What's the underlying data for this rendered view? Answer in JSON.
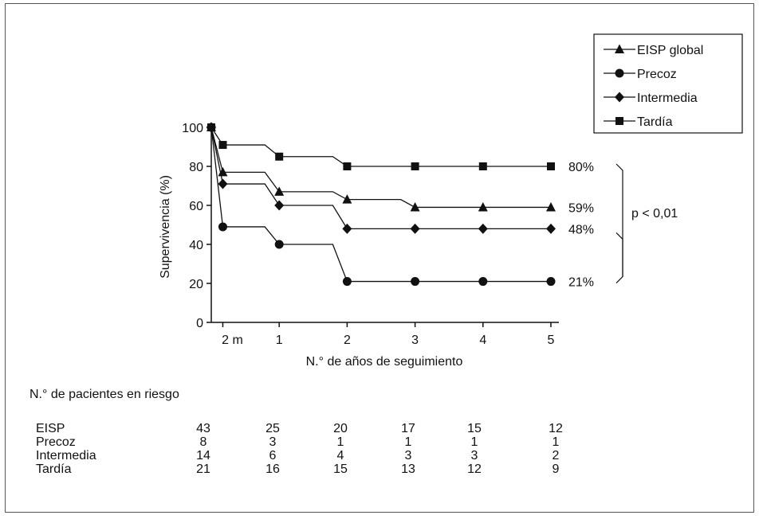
{
  "chart_data": {
    "type": "line",
    "xlabel": "N.° de años de seguimiento",
    "ylabel": "Supervivencia (%)",
    "ylim": [
      0,
      100
    ],
    "xlim": [
      0,
      5
    ],
    "x_ticks": [
      {
        "x": 0.17,
        "label": "2 m"
      },
      {
        "x": 1,
        "label": "1"
      },
      {
        "x": 2,
        "label": "2"
      },
      {
        "x": 3,
        "label": "3"
      },
      {
        "x": 4,
        "label": "4"
      },
      {
        "x": 5,
        "label": "5"
      }
    ],
    "y_ticks": [
      0,
      20,
      40,
      60,
      80,
      100
    ],
    "series": [
      {
        "name": "EISP global",
        "marker": "triangle",
        "end_label": "59%",
        "points": [
          [
            0,
            100
          ],
          [
            0.17,
            77
          ],
          [
            1,
            67
          ],
          [
            2,
            63
          ],
          [
            3,
            59
          ],
          [
            4,
            59
          ],
          [
            5,
            59
          ]
        ]
      },
      {
        "name": "Precoz",
        "marker": "circle",
        "end_label": "21%",
        "points": [
          [
            0,
            100
          ],
          [
            0.17,
            49
          ],
          [
            1,
            40
          ],
          [
            2,
            21
          ],
          [
            3,
            21
          ],
          [
            4,
            21
          ],
          [
            5,
            21
          ]
        ]
      },
      {
        "name": "Intermedia",
        "marker": "diamond",
        "end_label": "48%",
        "points": [
          [
            0,
            100
          ],
          [
            0.17,
            71
          ],
          [
            1,
            60
          ],
          [
            2,
            48
          ],
          [
            3,
            48
          ],
          [
            4,
            48
          ],
          [
            5,
            48
          ]
        ]
      },
      {
        "name": "Tardía",
        "marker": "square",
        "end_label": "80%",
        "points": [
          [
            0,
            100
          ],
          [
            0.17,
            91
          ],
          [
            1,
            85
          ],
          [
            2,
            80
          ],
          [
            3,
            80
          ],
          [
            4,
            80
          ],
          [
            5,
            80
          ]
        ]
      }
    ],
    "annotation": "p < 0,01",
    "legend_position": "top-right",
    "grid": false
  },
  "risk_table": {
    "title": "N.° de pacientes en riesgo",
    "rows": [
      {
        "label": "EISP",
        "values": [
          "43",
          "25",
          "20",
          "17",
          "15",
          "12"
        ]
      },
      {
        "label": "Precoz",
        "values": [
          "8",
          "3",
          "1",
          "1",
          "1",
          "1"
        ]
      },
      {
        "label": "Intermedia",
        "values": [
          "14",
          "6",
          "4",
          "3",
          "3",
          "2"
        ]
      },
      {
        "label": "Tardía",
        "values": [
          "21",
          "16",
          "15",
          "13",
          "12",
          "9"
        ]
      }
    ]
  }
}
